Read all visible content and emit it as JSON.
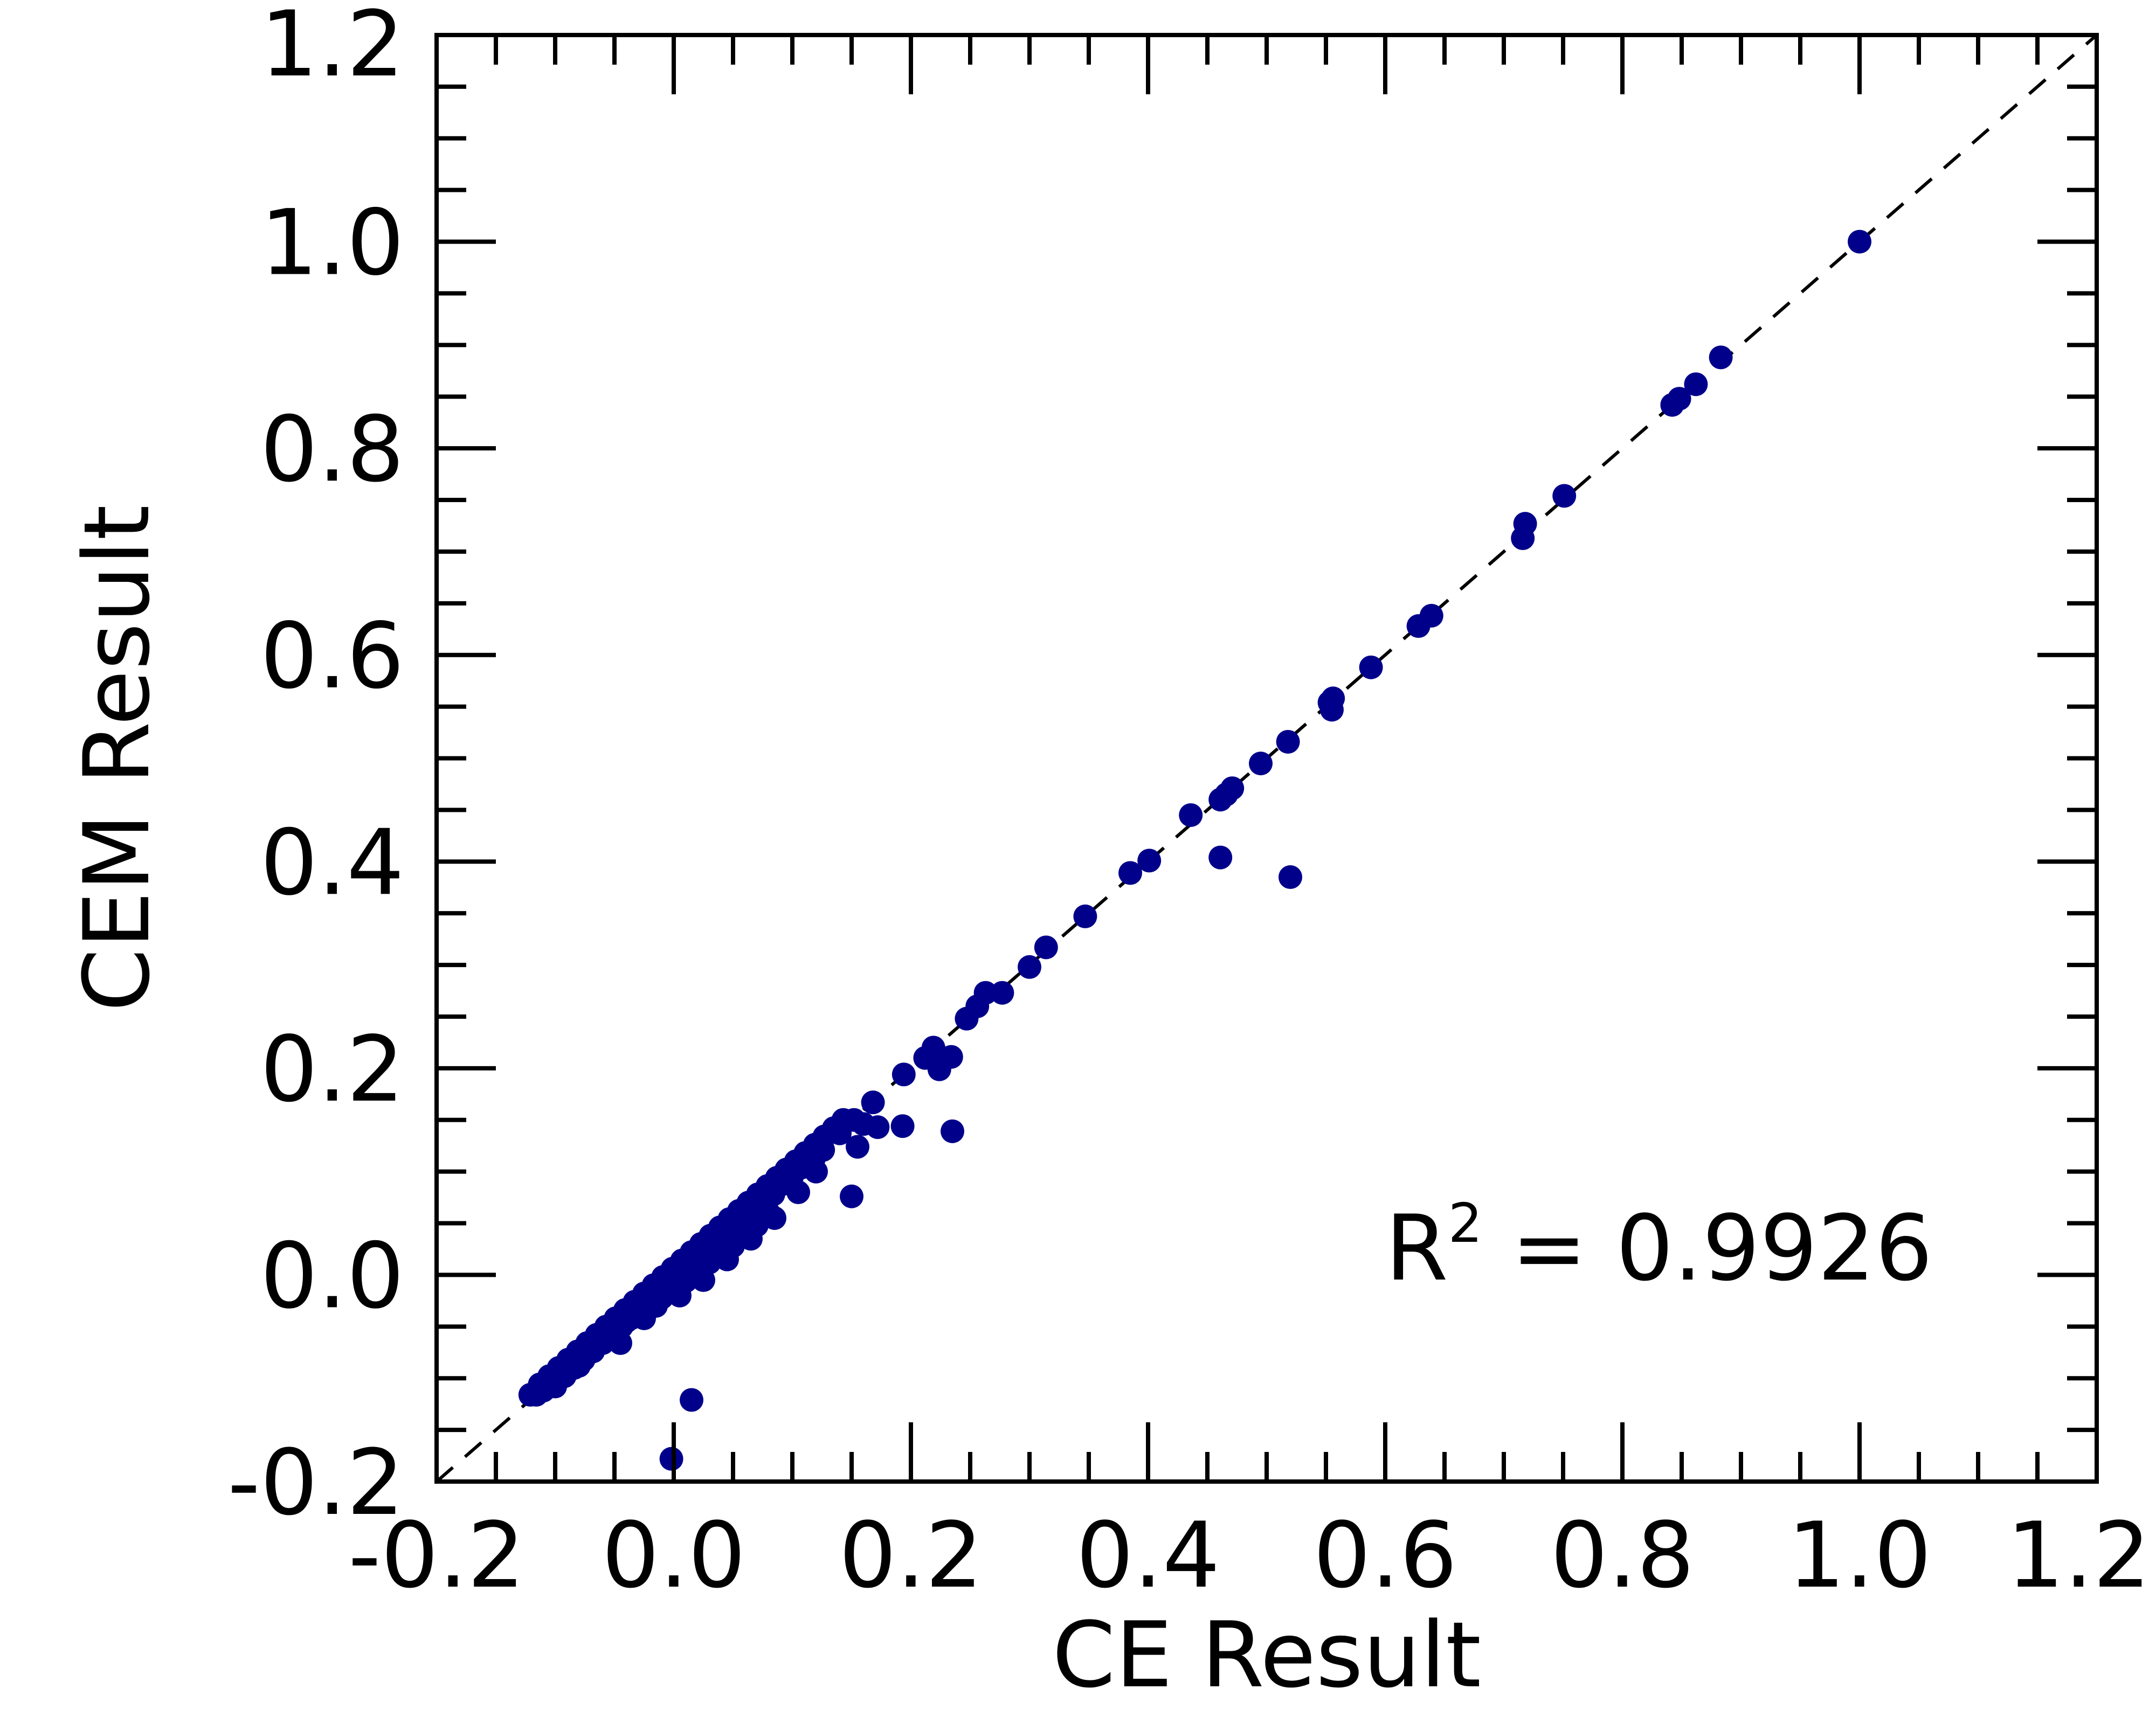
{
  "chart_data": {
    "type": "scatter",
    "title": "",
    "xlabel": "CE Result",
    "ylabel": "CEM Result",
    "xlim": [
      -0.2,
      1.2
    ],
    "ylim": [
      -0.2,
      1.2
    ],
    "xticks": [
      "-0.2",
      "0.0",
      "0.2",
      "0.4",
      "0.6",
      "0.8",
      "1.0",
      "1.2"
    ],
    "yticks": [
      "-0.2",
      "0.0",
      "0.2",
      "0.4",
      "0.6",
      "0.8",
      "1.0",
      "1.2"
    ],
    "tick_values": [
      -0.2,
      0.0,
      0.2,
      0.4,
      0.6,
      0.8,
      1.0,
      1.2
    ],
    "grid": false,
    "legend": "none",
    "point_color": "#00008B",
    "reference_line": {
      "style": "dashed",
      "from": [
        -0.2,
        -0.2
      ],
      "to": [
        1.2,
        1.2
      ]
    },
    "annotation": {
      "base": "R",
      "sup": "2",
      "rest": " = 0.9926"
    },
    "points": [
      [
        1.0,
        1.0
      ],
      [
        0.883,
        0.888
      ],
      [
        0.862,
        0.862
      ],
      [
        0.848,
        0.848
      ],
      [
        0.842,
        0.842
      ],
      [
        0.751,
        0.754
      ],
      [
        0.718,
        0.727
      ],
      [
        0.716,
        0.713
      ],
      [
        0.639,
        0.638
      ],
      [
        0.628,
        0.628
      ],
      [
        0.588,
        0.588
      ],
      [
        0.556,
        0.558
      ],
      [
        0.553,
        0.554
      ],
      [
        0.555,
        0.547
      ],
      [
        0.518,
        0.516
      ],
      [
        0.495,
        0.495
      ],
      [
        0.471,
        0.471
      ],
      [
        0.466,
        0.465
      ],
      [
        0.461,
        0.46
      ],
      [
        0.436,
        0.445
      ],
      [
        0.401,
        0.401
      ],
      [
        0.385,
        0.389
      ],
      [
        0.461,
        0.404
      ],
      [
        0.52,
        0.385
      ],
      [
        0.347,
        0.347
      ],
      [
        0.314,
        0.317
      ],
      [
        0.3,
        0.298
      ],
      [
        0.277,
        0.273
      ],
      [
        0.263,
        0.273
      ],
      [
        0.256,
        0.26
      ],
      [
        0.247,
        0.248
      ],
      [
        0.234,
        0.211
      ],
      [
        0.224,
        0.199
      ],
      [
        0.219,
        0.22
      ],
      [
        0.212,
        0.21
      ],
      [
        0.194,
        0.194
      ],
      [
        0.193,
        0.144
      ],
      [
        0.235,
        0.139
      ],
      [
        0.168,
        0.167
      ],
      [
        0.172,
        0.143
      ],
      [
        0.155,
        0.124
      ],
      [
        0.15,
        0.076
      ],
      [
        0.16,
        0.146
      ],
      [
        0.152,
        0.15
      ],
      [
        0.14,
        0.137
      ],
      [
        0.126,
        0.121
      ],
      [
        0.118,
        0.112
      ],
      [
        0.108,
        0.104
      ],
      [
        0.1,
        0.096
      ],
      [
        0.092,
        0.088
      ],
      [
        0.084,
        0.078
      ],
      [
        0.076,
        0.07
      ],
      [
        0.068,
        0.062
      ],
      [
        0.06,
        0.054
      ],
      [
        0.052,
        0.046
      ],
      [
        0.044,
        0.038
      ],
      [
        0.036,
        0.03
      ],
      [
        0.028,
        0.022
      ],
      [
        0.02,
        0.014
      ],
      [
        0.012,
        0.006
      ],
      [
        0.004,
        -0.002
      ],
      [
        -0.004,
        -0.01
      ],
      [
        -0.012,
        -0.018
      ],
      [
        -0.02,
        -0.026
      ],
      [
        -0.028,
        -0.034
      ],
      [
        -0.036,
        -0.042
      ],
      [
        -0.044,
        -0.05
      ],
      [
        -0.052,
        -0.058
      ],
      [
        -0.06,
        -0.066
      ],
      [
        -0.068,
        -0.074
      ],
      [
        -0.076,
        -0.082
      ],
      [
        -0.084,
        -0.09
      ],
      [
        -0.092,
        -0.098
      ],
      [
        -0.1,
        -0.104
      ],
      [
        -0.108,
        -0.11
      ],
      [
        -0.116,
        -0.116
      ],
      [
        -0.121,
        -0.116
      ],
      [
        -0.113,
        -0.106
      ],
      [
        -0.105,
        -0.098
      ],
      [
        -0.097,
        -0.09
      ],
      [
        -0.089,
        -0.082
      ],
      [
        -0.081,
        -0.074
      ],
      [
        -0.073,
        -0.066
      ],
      [
        -0.065,
        -0.058
      ],
      [
        -0.057,
        -0.05
      ],
      [
        -0.049,
        -0.042
      ],
      [
        -0.041,
        -0.034
      ],
      [
        -0.033,
        -0.026
      ],
      [
        -0.025,
        -0.018
      ],
      [
        -0.017,
        -0.01
      ],
      [
        -0.009,
        -0.002
      ],
      [
        -0.001,
        0.006
      ],
      [
        0.007,
        0.014
      ],
      [
        0.015,
        0.022
      ],
      [
        0.023,
        0.03
      ],
      [
        0.031,
        0.038
      ],
      [
        0.039,
        0.046
      ],
      [
        0.047,
        0.054
      ],
      [
        0.055,
        0.062
      ],
      [
        0.063,
        0.07
      ],
      [
        0.071,
        0.078
      ],
      [
        0.079,
        0.086
      ],
      [
        0.087,
        0.094
      ],
      [
        0.095,
        0.102
      ],
      [
        0.103,
        0.11
      ],
      [
        0.111,
        0.118
      ],
      [
        0.119,
        0.126
      ],
      [
        0.127,
        0.134
      ],
      [
        0.135,
        0.142
      ],
      [
        0.143,
        0.15
      ],
      [
        -0.06,
        -0.062
      ],
      [
        -0.04,
        -0.045
      ],
      [
        -0.02,
        -0.028
      ],
      [
        0.0,
        -0.01
      ],
      [
        0.02,
        0.005
      ],
      [
        0.04,
        0.022
      ],
      [
        0.06,
        0.04
      ],
      [
        0.08,
        0.06
      ],
      [
        0.07,
        0.048
      ],
      [
        0.05,
        0.028
      ],
      [
        0.03,
        0.012
      ],
      [
        0.01,
        -0.006
      ],
      [
        -0.01,
        -0.022
      ],
      [
        -0.03,
        -0.038
      ],
      [
        -0.05,
        -0.055
      ],
      [
        -0.07,
        -0.074
      ],
      [
        -0.09,
        -0.094
      ],
      [
        -0.11,
        -0.112
      ],
      [
        -0.1,
        -0.108
      ],
      [
        -0.08,
        -0.088
      ],
      [
        -0.045,
        -0.066
      ],
      [
        -0.025,
        -0.042
      ],
      [
        -0.015,
        -0.03
      ],
      [
        0.005,
        -0.02
      ],
      [
        0.025,
        -0.005
      ],
      [
        0.045,
        0.015
      ],
      [
        0.065,
        0.035
      ],
      [
        0.085,
        0.055
      ],
      [
        0.105,
        0.08
      ],
      [
        0.12,
        0.1
      ],
      [
        0.015,
        -0.121
      ],
      [
        -0.002,
        -0.178
      ]
    ]
  }
}
